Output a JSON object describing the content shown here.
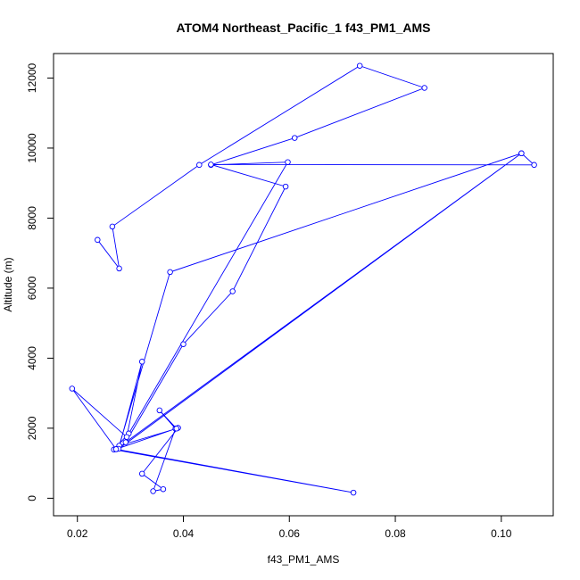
{
  "chart_data": {
    "type": "line",
    "title": "ATOM4 Northeast_Pacific_1 f43_PM1_AMS",
    "xlabel": "f43_PM1_AMS",
    "ylabel": "Altitude (m)",
    "xlim": [
      0.0155,
      0.1098
    ],
    "ylim": [
      -500,
      12700
    ],
    "xticks": [
      0.02,
      0.04,
      0.06,
      0.08,
      0.1
    ],
    "xtick_labels": [
      "0.02",
      "0.04",
      "0.06",
      "0.08",
      "0.10"
    ],
    "yticks": [
      0,
      2000,
      4000,
      6000,
      8000,
      10000,
      12000
    ],
    "ytick_labels": [
      "0",
      "2000",
      "4000",
      "6000",
      "8000",
      "10000",
      "12000"
    ],
    "grid": false,
    "color": "#0000ff",
    "series": [
      {
        "marker": "open-circle",
        "points": [
          [
            0.0238,
            7380
          ],
          [
            0.0279,
            6560
          ],
          [
            0.0266,
            7760
          ],
          [
            0.043,
            9520
          ],
          [
            0.0733,
            12350
          ],
          [
            0.0855,
            11720
          ],
          [
            0.061,
            10290
          ],
          [
            0.0452,
            9520
          ],
          [
            0.0597,
            9600
          ],
          [
            0.0297,
            1850
          ],
          [
            0.0269,
            1390
          ],
          [
            0.0721,
            160
          ],
          [
            0.0273,
            1400
          ],
          [
            0.039,
            2010
          ],
          [
            0.0322,
            700
          ],
          [
            0.0362,
            260
          ],
          [
            0.0343,
            200
          ],
          [
            0.0385,
            1990
          ],
          [
            0.0355,
            2510
          ],
          [
            0.0387,
            1990
          ],
          [
            0.0279,
            1500
          ],
          [
            0.0375,
            6460
          ],
          [
            0.1038,
            9850
          ],
          [
            0.1062,
            9520
          ],
          [
            0.0452,
            9530
          ],
          [
            0.0593,
            8900
          ],
          [
            0.0493,
            5910
          ],
          [
            0.04,
            4400
          ],
          [
            0.0291,
            1600
          ],
          [
            0.1038,
            9850
          ],
          [
            0.0278,
            1410
          ],
          [
            0.0322,
            3900
          ],
          [
            0.0293,
            1750
          ],
          [
            0.019,
            3130
          ],
          [
            0.0273,
            1400
          ]
        ]
      }
    ]
  }
}
